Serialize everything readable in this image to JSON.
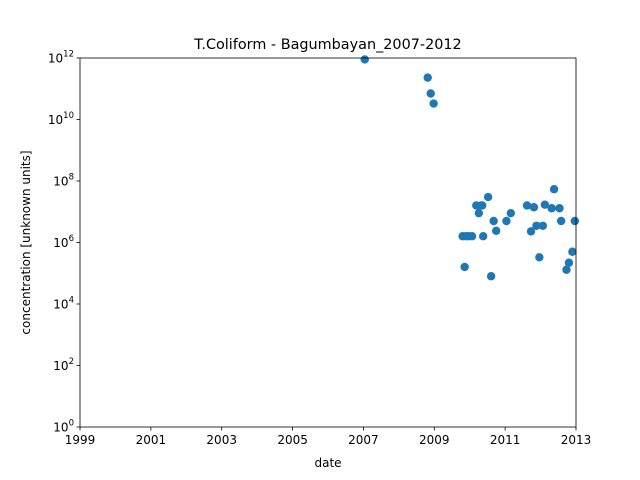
{
  "chart_data": {
    "type": "scatter",
    "title": "T.Coliform - Bagumbayan_2007-2012",
    "xlabel": "date",
    "ylabel": "concentration [unknown units]",
    "x_scale": "date",
    "y_scale": "log",
    "xlim": [
      "1999-01-01",
      "2013-01-01"
    ],
    "ylim": [
      1,
      1000000000000
    ],
    "x_ticks": [
      "1999",
      "2001",
      "2003",
      "2005",
      "2007",
      "2009",
      "2011",
      "2013"
    ],
    "y_tick_exponents": [
      0,
      2,
      4,
      6,
      8,
      10,
      12
    ],
    "y_tick_base": "10",
    "grid": false,
    "marker_color": "#1f77b4",
    "points": [
      {
        "date": "2007-01-15",
        "y": 900000000000
      },
      {
        "date": "2008-10-25",
        "y": 230000000000
      },
      {
        "date": "2008-11-25",
        "y": 70000000000
      },
      {
        "date": "2008-12-25",
        "y": 33000000000
      },
      {
        "date": "2009-10-20",
        "y": 1600000
      },
      {
        "date": "2009-11-10",
        "y": 160000
      },
      {
        "date": "2009-11-25",
        "y": 1600000
      },
      {
        "date": "2009-12-20",
        "y": 1600000
      },
      {
        "date": "2010-01-25",
        "y": 1600000
      },
      {
        "date": "2010-03-10",
        "y": 16000000
      },
      {
        "date": "2010-04-05",
        "y": 9000000
      },
      {
        "date": "2010-05-01",
        "y": 16000000
      },
      {
        "date": "2010-05-10",
        "y": 16000000
      },
      {
        "date": "2010-05-20",
        "y": 1600000
      },
      {
        "date": "2010-07-10",
        "y": 30000000
      },
      {
        "date": "2010-08-10",
        "y": 80000
      },
      {
        "date": "2010-09-05",
        "y": 5000000
      },
      {
        "date": "2010-10-01",
        "y": 2400000
      },
      {
        "date": "2011-01-15",
        "y": 5000000
      },
      {
        "date": "2011-03-01",
        "y": 9000000
      },
      {
        "date": "2011-08-15",
        "y": 16000000
      },
      {
        "date": "2011-09-25",
        "y": 2300000
      },
      {
        "date": "2011-10-25",
        "y": 14000000
      },
      {
        "date": "2011-11-20",
        "y": 3500000
      },
      {
        "date": "2011-12-20",
        "y": 330000
      },
      {
        "date": "2012-01-25",
        "y": 3500000
      },
      {
        "date": "2012-02-15",
        "y": 17000000
      },
      {
        "date": "2012-04-25",
        "y": 13000000
      },
      {
        "date": "2012-05-20",
        "y": 54000000
      },
      {
        "date": "2012-07-15",
        "y": 13000000
      },
      {
        "date": "2012-08-01",
        "y": 5000000
      },
      {
        "date": "2012-09-25",
        "y": 130000
      },
      {
        "date": "2012-10-20",
        "y": 220000
      },
      {
        "date": "2012-11-25",
        "y": 500000
      },
      {
        "date": "2012-12-20",
        "y": 5000000
      }
    ]
  }
}
